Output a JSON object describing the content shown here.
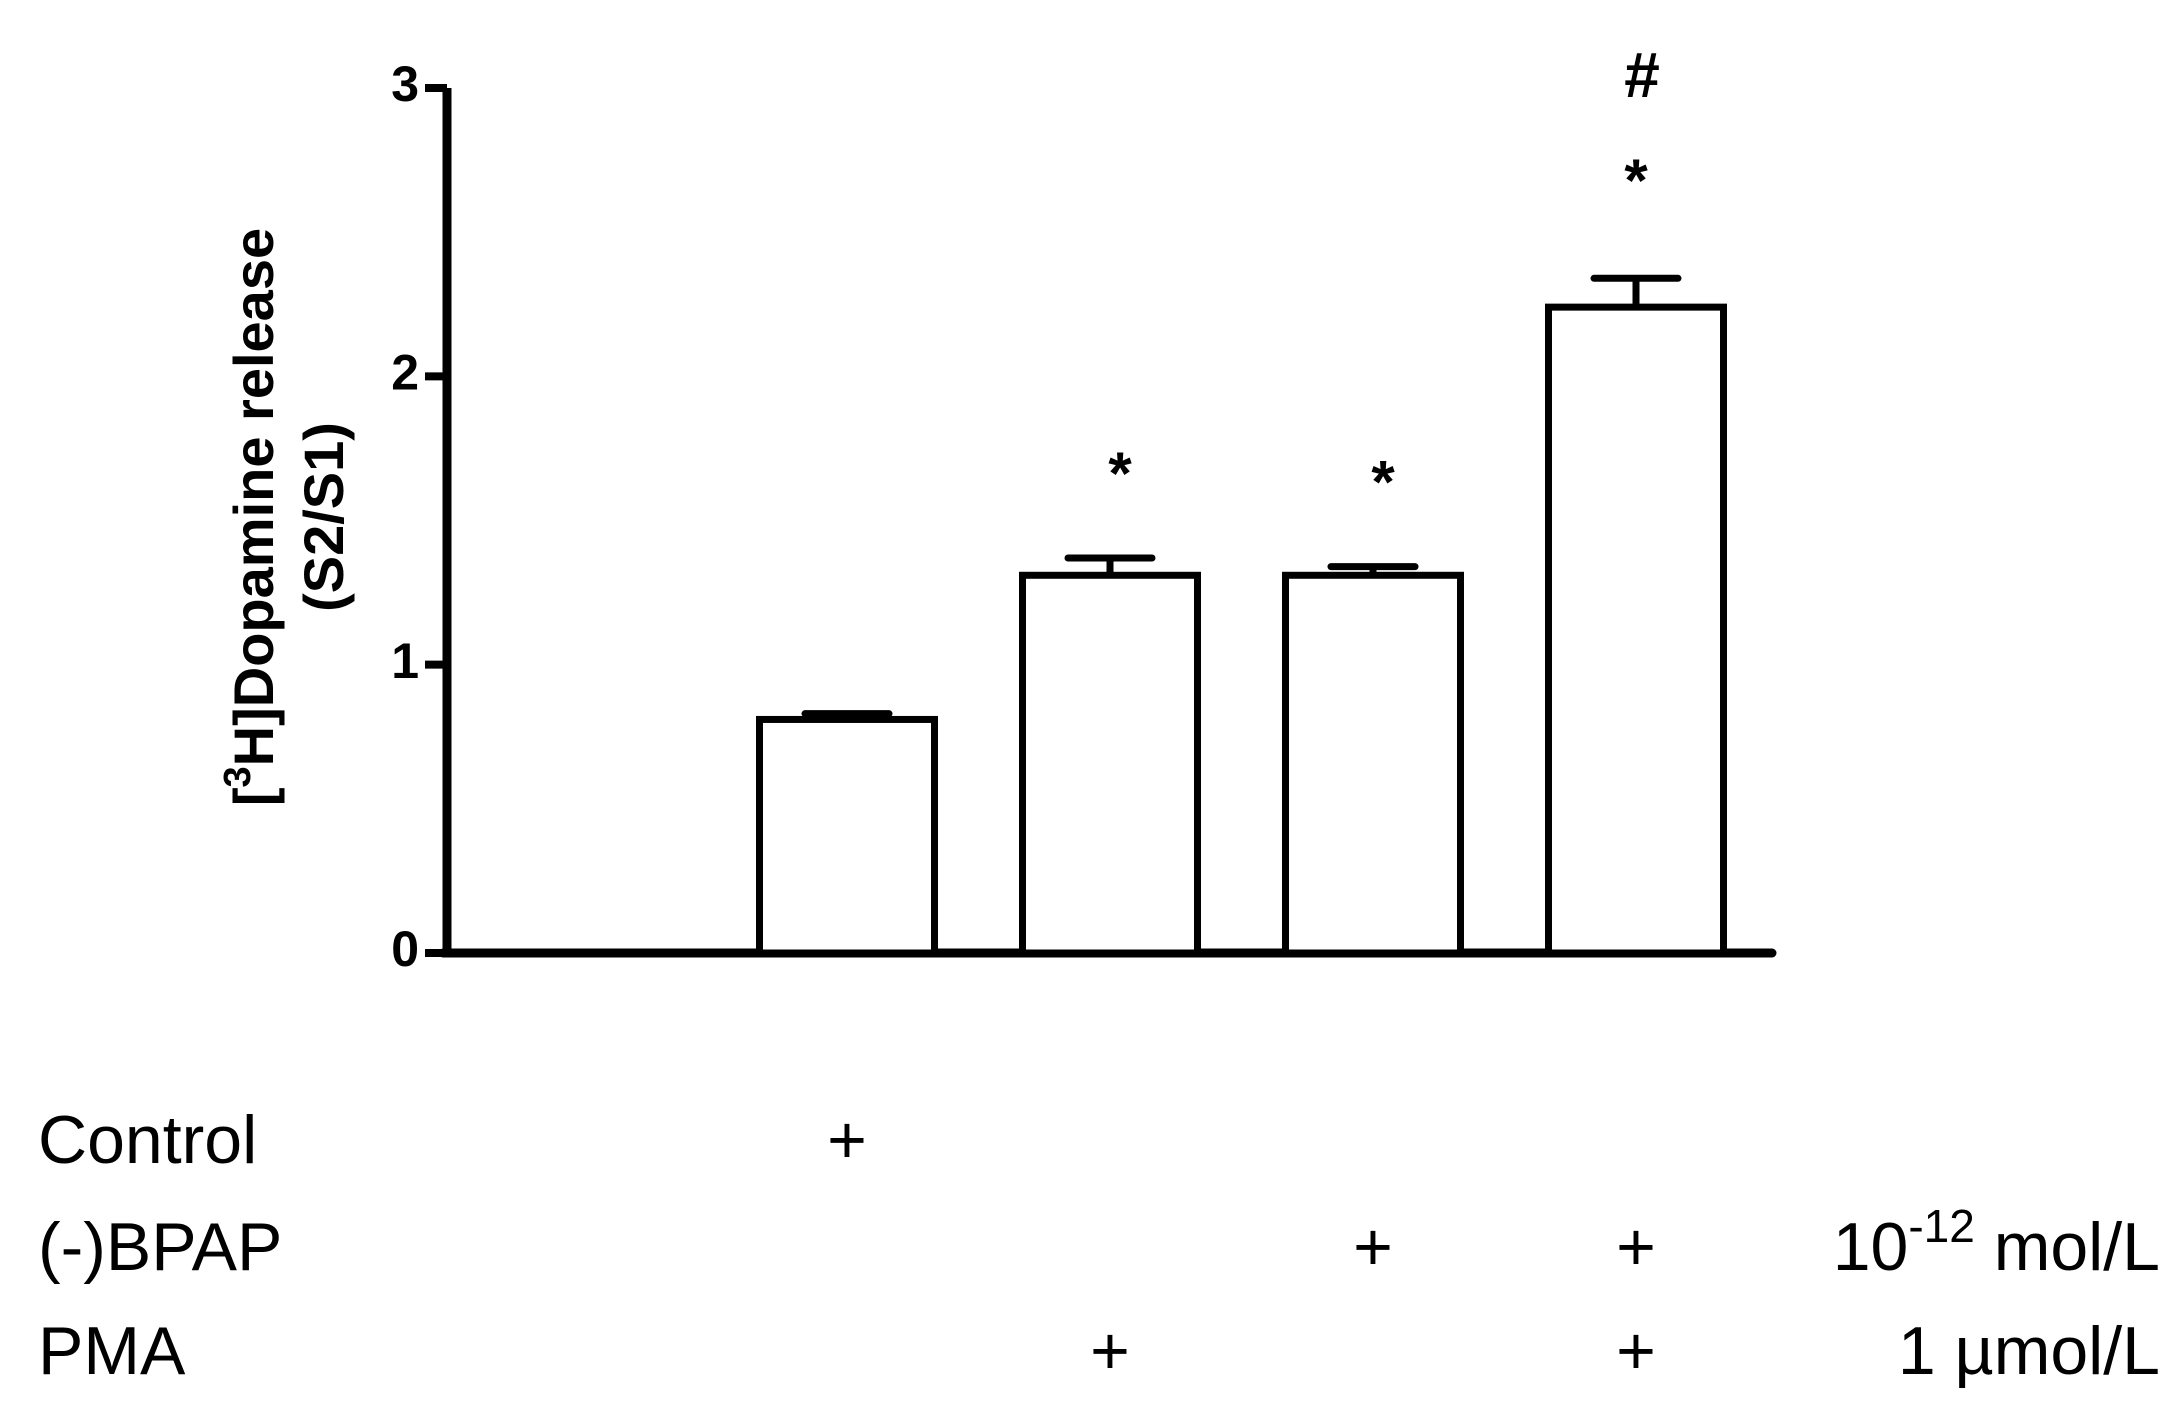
{
  "chart_data": {
    "type": "bar",
    "y_label": [
      "[",
      "3",
      "H]Dopamine release",
      "(S2/S1)"
    ],
    "values": [
      0.81,
      1.31,
      1.31,
      2.24
    ],
    "errors": [
      0.02,
      0.06,
      0.03,
      0.1
    ],
    "color": "#ffffff",
    "ylim": [
      0,
      3
    ],
    "yticks": [
      0,
      1,
      2,
      3
    ],
    "significance": [
      null,
      "*",
      "*",
      "*"
    ],
    "second_significance": [
      null,
      null,
      null,
      "#"
    ],
    "treatments": [
      {
        "name": "Control",
        "marks": [
          "+",
          null,
          null,
          null
        ]
      },
      {
        "name": "(-)BPAP",
        "marks": [
          null,
          null,
          "+",
          "+"
        ],
        "dose": [
          "10",
          "-12",
          " mol/L"
        ]
      },
      {
        "name": "PMA",
        "marks": [
          null,
          "+",
          null,
          "+"
        ],
        "dose": [
          "1 µmol/L"
        ]
      }
    ]
  }
}
